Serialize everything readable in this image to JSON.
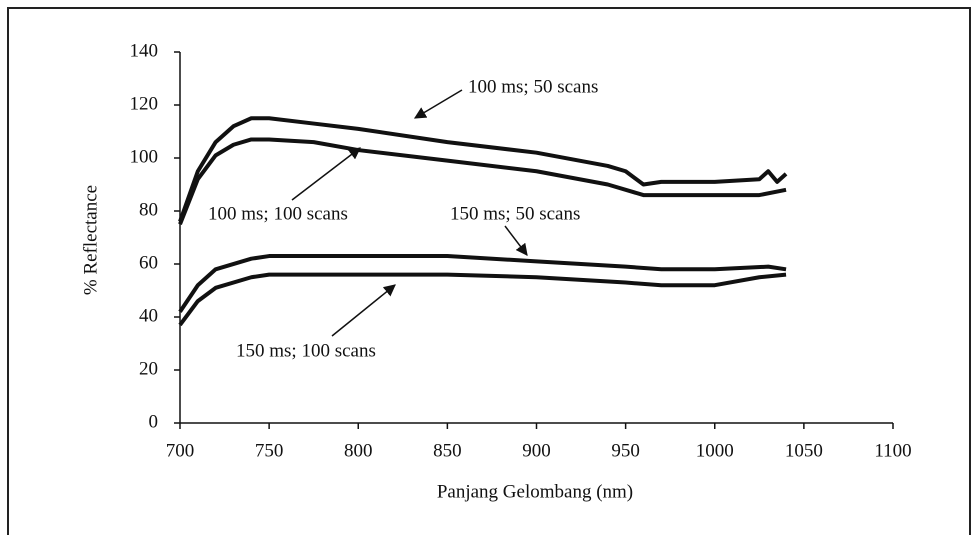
{
  "chart_data": {
    "type": "line",
    "x_label": "Panjang Gelombang (nm)",
    "y_label": "% Reflectance",
    "xlim": [
      700,
      1100
    ],
    "xticks": [
      700,
      750,
      800,
      850,
      900,
      950,
      1000,
      1050,
      1100
    ],
    "ylim": [
      0,
      140
    ],
    "yticks": [
      0,
      20,
      40,
      60,
      80,
      100,
      120,
      140
    ],
    "grid": false,
    "series": [
      {
        "name": "100 ms; 50 scans",
        "color": "#111111",
        "x": [
          700,
          710,
          720,
          730,
          740,
          750,
          775,
          800,
          850,
          900,
          940,
          950,
          960,
          970,
          1000,
          1025,
          1030,
          1035,
          1040
        ],
        "values": [
          76,
          95,
          106,
          112,
          115,
          115,
          113,
          111,
          106,
          102,
          97,
          95,
          90,
          91,
          91,
          92,
          95,
          91,
          94
        ]
      },
      {
        "name": "100 ms; 100 scans",
        "color": "#111111",
        "x": [
          700,
          710,
          720,
          730,
          740,
          750,
          775,
          800,
          850,
          900,
          940,
          960,
          970,
          1000,
          1025,
          1040
        ],
        "values": [
          75,
          92,
          101,
          105,
          107,
          107,
          106,
          103,
          99,
          95,
          90,
          86,
          86,
          86,
          86,
          88
        ]
      },
      {
        "name": "150 ms; 50 scans",
        "color": "#111111",
        "x": [
          700,
          710,
          720,
          740,
          750,
          800,
          850,
          900,
          950,
          970,
          1000,
          1030,
          1040
        ],
        "values": [
          42,
          52,
          58,
          62,
          63,
          63,
          63,
          61,
          59,
          58,
          58,
          59,
          58
        ]
      },
      {
        "name": "150 ms; 100 scans",
        "color": "#111111",
        "x": [
          700,
          710,
          720,
          740,
          750,
          800,
          850,
          900,
          950,
          970,
          1000,
          1025,
          1040
        ],
        "values": [
          37,
          46,
          51,
          55,
          56,
          56,
          56,
          55,
          53,
          52,
          52,
          55,
          56
        ]
      }
    ]
  }
}
